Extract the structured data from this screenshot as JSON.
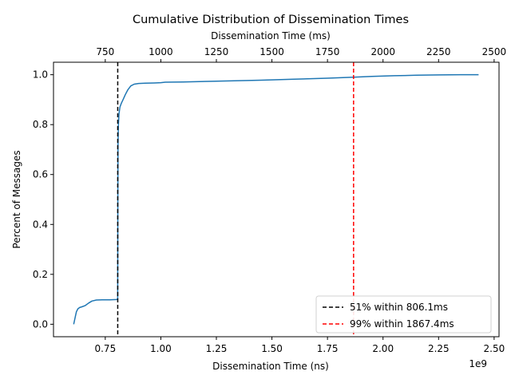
{
  "chart_data": {
    "type": "line",
    "title": "Cumulative Distribution of Dissemination Times",
    "xlabel": "Dissemination Time (ns)",
    "x_offset_label": "1e9",
    "ylabel": "Percent of Messages",
    "secondary_xlabel": "Dissemination Time (ms)",
    "xlim": [
      0.517,
      2.522
    ],
    "ylim": [
      -0.05,
      1.05
    ],
    "x_ticks": [
      0.75,
      1.0,
      1.25,
      1.5,
      1.75,
      2.0,
      2.25,
      2.5
    ],
    "x_tick_labels": [
      "0.75",
      "1.00",
      "1.25",
      "1.50",
      "1.75",
      "2.00",
      "2.25",
      "2.50"
    ],
    "y_ticks": [
      0.0,
      0.2,
      0.4,
      0.6,
      0.8,
      1.0
    ],
    "y_tick_labels": [
      "0.0",
      "0.2",
      "0.4",
      "0.6",
      "0.8",
      "1.0"
    ],
    "secondary_x_ticks": [
      750,
      1000,
      1250,
      1500,
      1750,
      2000,
      2250,
      2500
    ],
    "secondary_x_tick_labels": [
      "750",
      "1000",
      "1250",
      "1500",
      "1750",
      "2000",
      "2250",
      "2500"
    ],
    "grid": false,
    "legend_position": "bottom-right",
    "series": [
      {
        "color": "#1f77b4",
        "style": "solid",
        "x": [
          0.608,
          0.615,
          0.62,
          0.627,
          0.635,
          0.645,
          0.66,
          0.675,
          0.69,
          0.71,
          0.74,
          0.77,
          0.8,
          0.806,
          0.8065,
          0.8075,
          0.809,
          0.812,
          0.816,
          0.822,
          0.83,
          0.84,
          0.852,
          0.865,
          0.88,
          0.9,
          0.93,
          0.97,
          1.0,
          1.02,
          1.1,
          1.25,
          1.45,
          1.6,
          1.75,
          1.867,
          1.95,
          2.05,
          2.15,
          2.25,
          2.35,
          2.43
        ],
        "y": [
          0.0,
          0.03,
          0.05,
          0.062,
          0.067,
          0.07,
          0.075,
          0.085,
          0.093,
          0.097,
          0.098,
          0.098,
          0.099,
          0.1,
          0.51,
          0.72,
          0.8,
          0.845,
          0.87,
          0.885,
          0.9,
          0.92,
          0.94,
          0.955,
          0.962,
          0.965,
          0.966,
          0.967,
          0.968,
          0.97,
          0.971,
          0.974,
          0.978,
          0.982,
          0.986,
          0.99,
          0.993,
          0.996,
          0.998,
          0.999,
          1.0,
          1.0
        ]
      }
    ],
    "reference_lines": [
      {
        "x": 0.8061,
        "color": "#000000",
        "label": "51%  within 806.1ms"
      },
      {
        "x": 1.8674,
        "color": "#ff0000",
        "label": "99%  within 1867.4ms"
      }
    ]
  }
}
